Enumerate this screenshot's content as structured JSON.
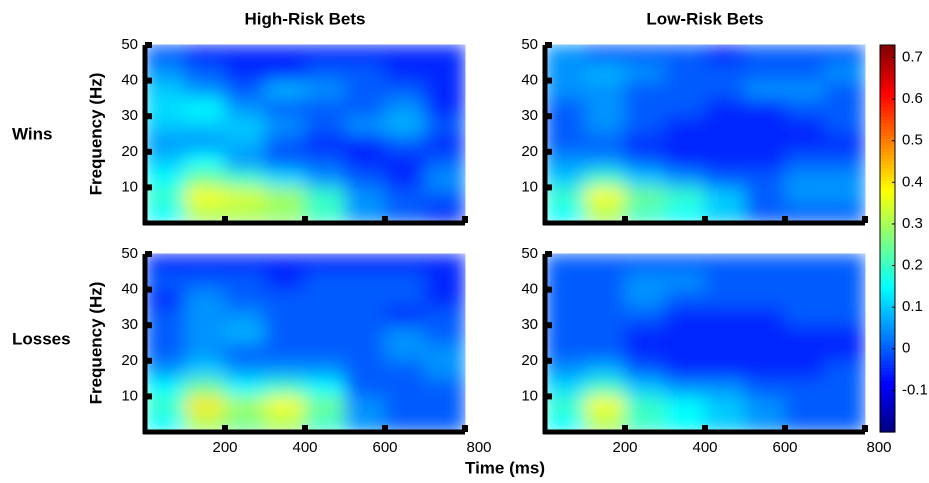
{
  "chart_data": {
    "type": "heatmap",
    "column_titles": [
      "High-Risk Bets",
      "Low-Risk Bets"
    ],
    "row_titles": [
      "Wins",
      "Losses"
    ],
    "ylabel": "Frequency (Hz)",
    "xlabel": "Time (ms)",
    "x": [
      50,
      150,
      250,
      350,
      450,
      550,
      650,
      750
    ],
    "y": [
      2.5,
      7.5,
      12.5,
      17.5,
      22.5,
      27.5,
      32.5,
      37.5,
      42.5,
      47.5
    ],
    "xlim": [
      0,
      800
    ],
    "ylim": [
      0,
      50
    ],
    "xticks": [
      200,
      400,
      600,
      800
    ],
    "yticks": [
      10,
      20,
      30,
      40,
      50
    ],
    "colormap": "jet",
    "clim": [
      -0.2,
      0.73
    ],
    "cticks": [
      -0.1,
      0,
      0.1,
      0.2,
      0.3,
      0.4,
      0.5,
      0.6,
      0.7
    ],
    "values": [
      [
        [
          [
            0.15,
            0.3,
            0.3,
            0.28,
            0.2,
            0.05,
            0,
            -0.05
          ],
          [
            0.2,
            0.38,
            0.35,
            0.3,
            0.2,
            0.05,
            0,
            0
          ],
          [
            0.15,
            0.25,
            0.2,
            0.12,
            0.05,
            0,
            -0.05,
            0.05
          ],
          [
            0.1,
            0.15,
            0.05,
            0,
            0,
            -0.05,
            -0.05,
            0
          ],
          [
            0.05,
            0.05,
            0.08,
            0,
            -0.05,
            -0.05,
            0,
            -0.05
          ],
          [
            0.1,
            0.1,
            0.1,
            0.05,
            0,
            0.05,
            0.08,
            0
          ],
          [
            0.12,
            0.15,
            0.05,
            0,
            0,
            0,
            0.05,
            -0.05
          ],
          [
            0.1,
            0.05,
            0,
            0.08,
            0.05,
            0,
            0,
            -0.05
          ],
          [
            0.05,
            0,
            -0.05,
            -0.05,
            0,
            0,
            -0.05,
            -0.05
          ],
          [
            0,
            -0.05,
            -0.05,
            -0.05,
            -0.05,
            -0.05,
            -0.05,
            -0.05
          ]
        ],
        [
          [
            0.15,
            0.3,
            0.2,
            0.15,
            0.1,
            0,
            0,
            0
          ],
          [
            0.2,
            0.38,
            0.25,
            0.2,
            0.1,
            0,
            0.05,
            0.05
          ],
          [
            0.1,
            0.2,
            0.1,
            0.05,
            0,
            0,
            0.05,
            0.05
          ],
          [
            0.05,
            0.05,
            0,
            -0.05,
            -0.05,
            -0.05,
            0,
            0
          ],
          [
            0,
            0,
            -0.05,
            -0.05,
            -0.05,
            -0.05,
            -0.05,
            -0.05
          ],
          [
            0,
            0.05,
            0,
            -0.05,
            -0.05,
            -0.05,
            -0.05,
            0
          ],
          [
            0,
            0.05,
            0,
            0,
            -0.05,
            -0.05,
            0,
            0
          ],
          [
            0.05,
            0.05,
            0,
            0,
            0,
            0.05,
            0.05,
            0
          ],
          [
            0.05,
            0.08,
            0.05,
            0,
            0,
            0,
            0,
            0.05
          ],
          [
            0.05,
            0,
            0,
            0,
            -0.05,
            0,
            0,
            0
          ]
        ]
      ],
      [
        [
          [
            0.15,
            0.3,
            0.25,
            0.3,
            0.2,
            0.05,
            0,
            0
          ],
          [
            0.2,
            0.4,
            0.3,
            0.38,
            0.25,
            0.05,
            0,
            0
          ],
          [
            0.15,
            0.25,
            0.15,
            0.2,
            0.15,
            0,
            0,
            0
          ],
          [
            0.05,
            0.1,
            0.05,
            0.05,
            0.05,
            0,
            0,
            0.05
          ],
          [
            0,
            0.05,
            0,
            0,
            0,
            0,
            0.05,
            0.05
          ],
          [
            0,
            0.05,
            0.08,
            0,
            0,
            0,
            0.05,
            0
          ],
          [
            0,
            0.05,
            0.05,
            0,
            0,
            0,
            -0.05,
            0
          ],
          [
            -0.05,
            0.05,
            0,
            0,
            0,
            0,
            0,
            -0.05
          ],
          [
            0,
            0,
            0,
            -0.05,
            0,
            0,
            0,
            -0.05
          ],
          [
            -0.05,
            -0.05,
            -0.05,
            -0.05,
            -0.05,
            -0.05,
            -0.05,
            -0.05
          ]
        ],
        [
          [
            0.15,
            0.3,
            0.2,
            0.15,
            0.1,
            0.05,
            0,
            0
          ],
          [
            0.2,
            0.38,
            0.2,
            0.15,
            0.1,
            0.05,
            0,
            0
          ],
          [
            0.12,
            0.2,
            0.1,
            0.05,
            0.05,
            0,
            0,
            0
          ],
          [
            0.05,
            0.08,
            0,
            -0.05,
            -0.05,
            -0.05,
            -0.05,
            0
          ],
          [
            0,
            0,
            -0.05,
            -0.05,
            -0.05,
            -0.05,
            -0.05,
            -0.05
          ],
          [
            0,
            0,
            -0.05,
            -0.05,
            -0.05,
            -0.05,
            -0.05,
            -0.05
          ],
          [
            0,
            0,
            0,
            -0.05,
            -0.05,
            -0.05,
            0,
            0
          ],
          [
            0,
            0,
            0.05,
            0,
            0,
            0,
            0,
            0
          ],
          [
            0,
            0,
            0.05,
            0.05,
            0,
            0,
            0,
            0
          ],
          [
            0,
            0,
            0,
            0,
            0,
            0,
            0,
            0
          ]
        ]
      ]
    ]
  }
}
